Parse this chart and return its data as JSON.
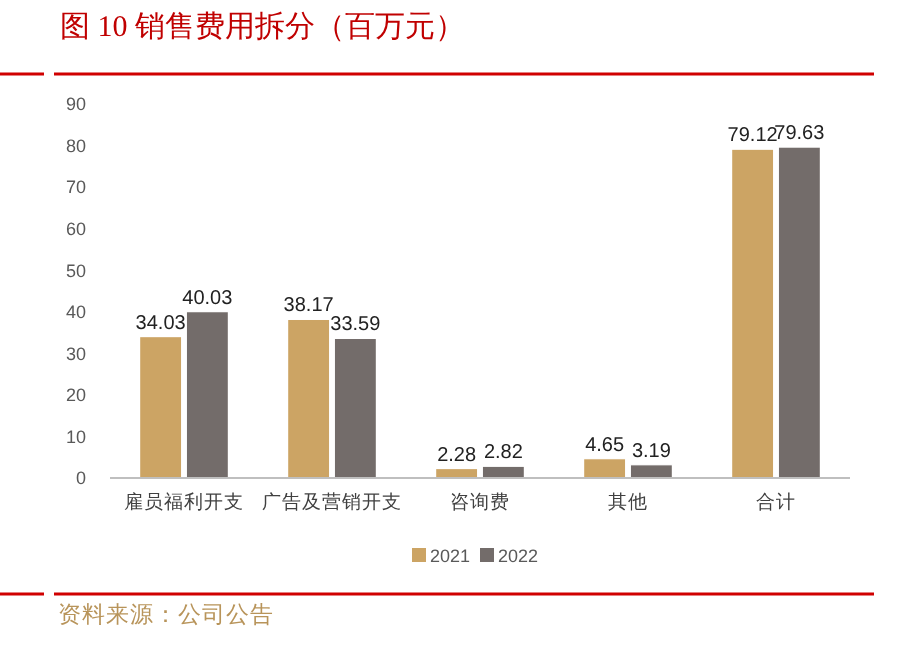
{
  "chart_data": {
    "type": "bar",
    "title": "图 10 销售费用拆分（百万元）",
    "categories": [
      "雇员福利开支",
      "广告及营销开支",
      "咨询费",
      "其他",
      "合计"
    ],
    "series": [
      {
        "name": "2021",
        "color": "#cca464",
        "values": [
          34.03,
          38.17,
          2.28,
          4.65,
          79.12
        ]
      },
      {
        "name": "2022",
        "color": "#736c6a",
        "values": [
          40.03,
          33.59,
          2.82,
          3.19,
          79.63
        ]
      }
    ],
    "ylim": [
      0,
      90
    ],
    "yticks": [
      0,
      10,
      20,
      30,
      40,
      50,
      60,
      70,
      80,
      90
    ],
    "grid": false,
    "legend": "bottom",
    "data_labels": true,
    "annotations": [
      "资料来源：公司公告"
    ]
  }
}
